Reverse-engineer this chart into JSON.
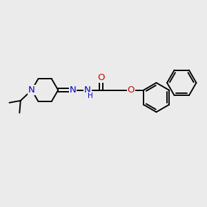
{
  "bg_color": "#ebebeb",
  "bond_color": "#000000",
  "bond_width": 1.4,
  "atom_colors": {
    "N": "#0000cc",
    "O": "#cc0000",
    "C": "#000000",
    "H": "#000000"
  },
  "font_size": 8.5,
  "fig_size": [
    3.0,
    3.0
  ],
  "dpi": 100
}
